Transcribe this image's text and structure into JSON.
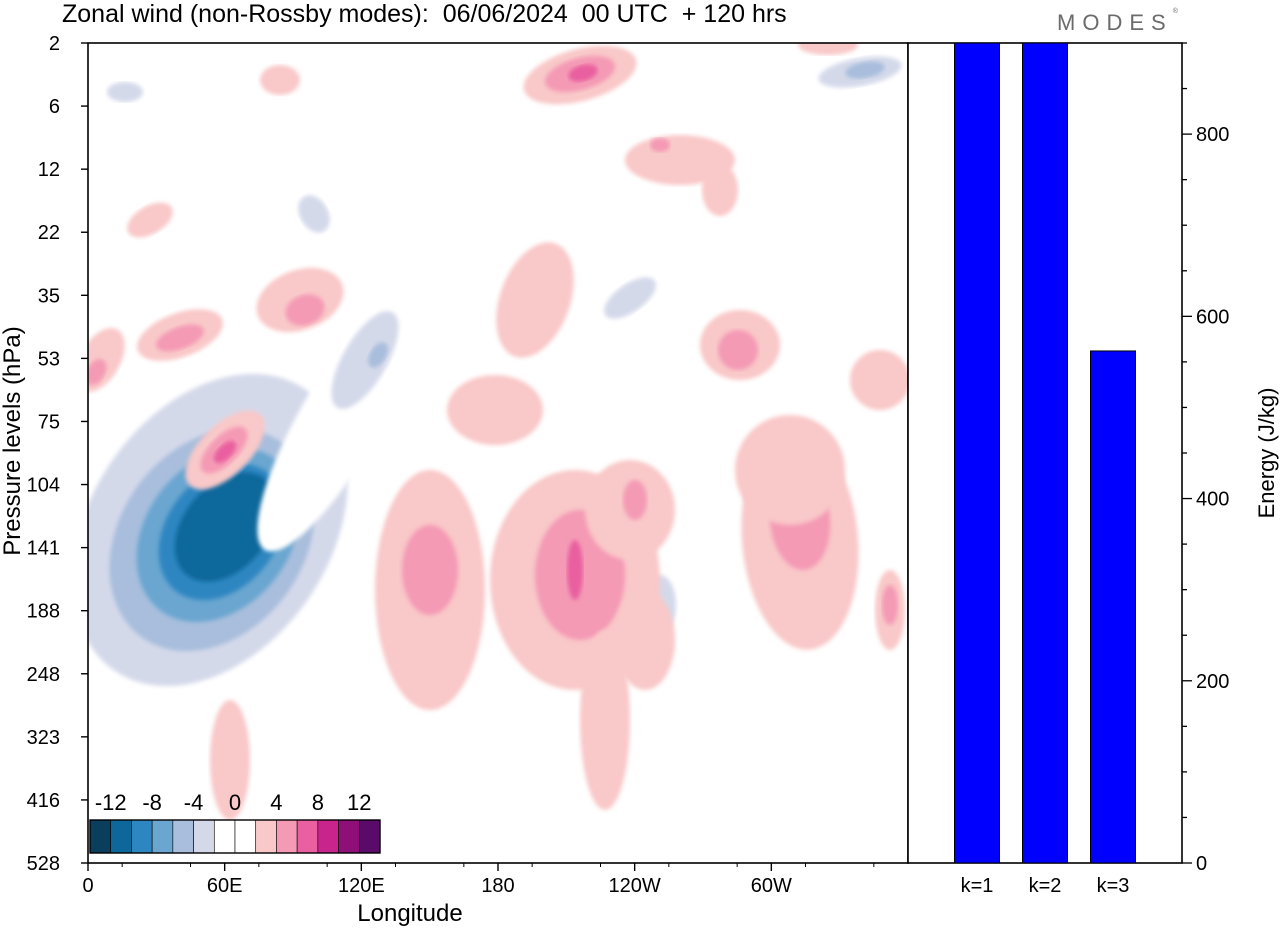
{
  "title": "Zonal wind (non-Rossby modes):  06/06/2024  00 UTC  + 120 hrs",
  "brand": "MODES",
  "brand_mark": "®",
  "chart_data": [
    {
      "type": "heatmap",
      "ylabel": "Pressure levels (hPa)",
      "xlabel": "Longitude",
      "x_tick_labels": [
        "0",
        "60E",
        "120E",
        "180",
        "120W",
        "60W"
      ],
      "y_tick_labels": [
        "2",
        "6",
        "12",
        "22",
        "35",
        "53",
        "75",
        "104",
        "141",
        "188",
        "248",
        "323",
        "416",
        "528"
      ],
      "colorbar": {
        "labels": [
          "-12",
          "-8",
          "-4",
          "0",
          "4",
          "8",
          "12"
        ],
        "colors": [
          "#0b3d5c",
          "#0d679b",
          "#2e86c1",
          "#6aa6d0",
          "#a8bedc",
          "#d4d9ea",
          "#ffffff",
          "#ffffff",
          "#f9c8c8",
          "#f49ab5",
          "#e95f9f",
          "#c9238c",
          "#8e0f78",
          "#5a0a68"
        ]
      },
      "features": [
        {
          "lon": 52,
          "level": "141",
          "value": -14
        },
        {
          "lon": 60,
          "level": "141",
          "value": -10
        },
        {
          "lon": 40,
          "level": "188",
          "value": -6
        },
        {
          "lon": 85,
          "level": "75",
          "value": 8
        },
        {
          "lon": 212,
          "level": "2",
          "value": 10
        },
        {
          "lon": 213,
          "level": "141",
          "value": 8
        },
        {
          "lon": 240,
          "level": "104",
          "value": 6
        },
        {
          "lon": 318,
          "level": "104",
          "value": 6
        },
        {
          "lon": 344,
          "level": "2",
          "value": -8
        },
        {
          "lon": 235,
          "level": "35",
          "value": -4
        },
        {
          "lon": 2,
          "level": "53",
          "value": 6
        }
      ]
    },
    {
      "type": "bar",
      "categories": [
        "k=1",
        "k=2",
        "k=3"
      ],
      "values": [
        900,
        900,
        562
      ],
      "ylabel": "Energy (J/kg)",
      "ylim": [
        0,
        900
      ],
      "y_ticks": [
        0,
        200,
        400,
        600,
        800
      ],
      "bar_color": "#0000ff"
    }
  ]
}
